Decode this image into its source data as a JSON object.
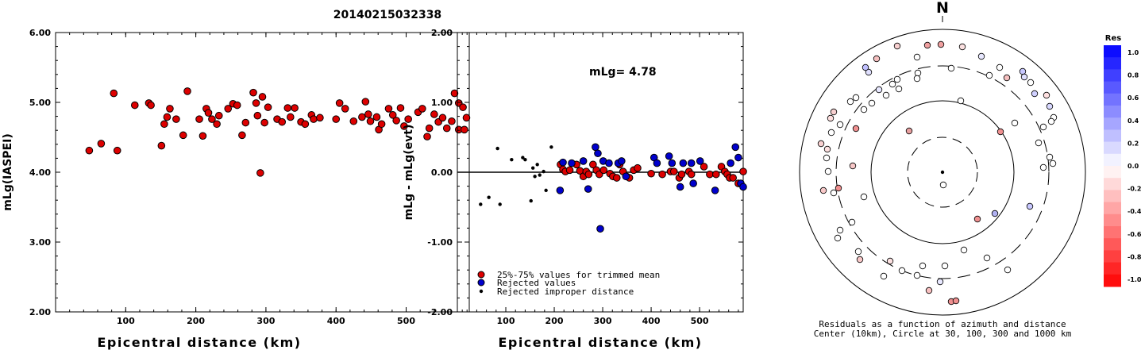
{
  "title": "20140215032338",
  "chart_data": [
    {
      "type": "scatter",
      "xlabel": "Epicentral distance (km)",
      "ylabel": "mLg(IASPEI)",
      "xlim": [
        0,
        590
      ],
      "ylim": [
        2.0,
        6.0
      ],
      "xticks": [
        "100",
        "200",
        "300",
        "400",
        "500"
      ],
      "yticks": [
        "2.00",
        "3.00",
        "4.00",
        "5.00",
        "6.00"
      ],
      "series": [
        {
          "color": "#dd0000",
          "points": [
            [
              48,
              4.31
            ],
            [
              65,
              4.41
            ],
            [
              83,
              5.13
            ],
            [
              88,
              4.31
            ],
            [
              113,
              4.96
            ],
            [
              133,
              4.99
            ],
            [
              136,
              4.96
            ],
            [
              151,
              4.38
            ],
            [
              155,
              4.69
            ],
            [
              159,
              4.79
            ],
            [
              163,
              4.91
            ],
            [
              172,
              4.76
            ],
            [
              182,
              4.53
            ],
            [
              188,
              5.16
            ],
            [
              205,
              4.76
            ],
            [
              210,
              4.52
            ],
            [
              215,
              4.91
            ],
            [
              218,
              4.85
            ],
            [
              223,
              4.76
            ],
            [
              230,
              4.69
            ],
            [
              233,
              4.81
            ],
            [
              246,
              4.91
            ],
            [
              253,
              4.98
            ],
            [
              259,
              4.96
            ],
            [
              266,
              4.53
            ],
            [
              271,
              4.71
            ],
            [
              282,
              5.14
            ],
            [
              286,
              4.99
            ],
            [
              288,
              4.81
            ],
            [
              292,
              3.99
            ],
            [
              295,
              5.08
            ],
            [
              298,
              4.71
            ],
            [
              303,
              4.93
            ],
            [
              316,
              4.76
            ],
            [
              323,
              4.72
            ],
            [
              331,
              4.92
            ],
            [
              335,
              4.79
            ],
            [
              341,
              4.92
            ],
            [
              350,
              4.72
            ],
            [
              356,
              4.69
            ],
            [
              365,
              4.82
            ],
            [
              368,
              4.76
            ],
            [
              377,
              4.78
            ],
            [
              400,
              4.76
            ],
            [
              405,
              4.99
            ],
            [
              413,
              4.91
            ],
            [
              425,
              4.73
            ],
            [
              437,
              4.79
            ],
            [
              442,
              5.01
            ],
            [
              446,
              4.83
            ],
            [
              449,
              4.73
            ],
            [
              458,
              4.79
            ],
            [
              461,
              4.61
            ],
            [
              465,
              4.69
            ],
            [
              475,
              4.91
            ],
            [
              481,
              4.82
            ],
            [
              486,
              4.74
            ],
            [
              492,
              4.92
            ],
            [
              497,
              4.66
            ],
            [
              503,
              4.76
            ],
            [
              517,
              4.86
            ],
            [
              523,
              4.91
            ],
            [
              530,
              4.51
            ],
            [
              533,
              4.63
            ],
            [
              540,
              4.83
            ],
            [
              546,
              4.72
            ],
            [
              552,
              4.78
            ],
            [
              558,
              4.63
            ],
            [
              565,
              4.73
            ],
            [
              569,
              5.13
            ],
            [
              575,
              4.99
            ],
            [
              575,
              4.61
            ],
            [
              581,
              4.93
            ],
            [
              583,
              4.61
            ],
            [
              586,
              4.78
            ]
          ]
        }
      ]
    },
    {
      "type": "scatter",
      "xlabel": "Epicentral distance (km)",
      "ylabel": "mLg - mLg(evt)",
      "xlim": [
        0,
        590
      ],
      "ylim": [
        -2.0,
        2.0
      ],
      "xticks": [
        "100",
        "200",
        "300",
        "400",
        "500"
      ],
      "yticks": [
        "-2.00",
        "-1.00",
        "0.00",
        "1.00",
        "2.00"
      ],
      "annotation": "mLg= 4.78",
      "legend": [
        "25%-75% values for trimmed mean",
        "Rejected values",
        "Rejected improper distance"
      ],
      "legend_position": "bottom",
      "series": [
        {
          "name": "25%-75% values for trimmed mean",
          "color": "#dd0000",
          "points": [
            [
              213,
              0.11
            ],
            [
              218,
              0.04
            ],
            [
              223,
              0.01
            ],
            [
              232,
              0.03
            ],
            [
              246,
              0.11
            ],
            [
              253,
              0.02
            ],
            [
              260,
              -0.06
            ],
            [
              266,
              0.01
            ],
            [
              271,
              -0.03
            ],
            [
              280,
              0.11
            ],
            [
              287,
              0.03
            ],
            [
              293,
              -0.03
            ],
            [
              302,
              0.03
            ],
            [
              315,
              -0.02
            ],
            [
              321,
              -0.06
            ],
            [
              329,
              -0.08
            ],
            [
              335,
              0.11
            ],
            [
              342,
              0.01
            ],
            [
              349,
              -0.06
            ],
            [
              355,
              -0.08
            ],
            [
              364,
              0.03
            ],
            [
              372,
              0.06
            ],
            [
              400,
              -0.02
            ],
            [
              423,
              -0.03
            ],
            [
              440,
              0.01
            ],
            [
              447,
              0.01
            ],
            [
              458,
              -0.08
            ],
            [
              463,
              -0.03
            ],
            [
              478,
              0.01
            ],
            [
              483,
              -0.03
            ],
            [
              509,
              0.08
            ],
            [
              521,
              -0.03
            ],
            [
              534,
              -0.03
            ],
            [
              545,
              0.08
            ],
            [
              552,
              0.01
            ],
            [
              557,
              -0.03
            ],
            [
              562,
              -0.08
            ],
            [
              569,
              -0.08
            ],
            [
              580,
              -0.16
            ],
            [
              590,
              0.01
            ]
          ]
        },
        {
          "name": "Rejected values",
          "color": "#0000cc",
          "points": [
            [
              212,
              -0.26
            ],
            [
              218,
              0.14
            ],
            [
              236,
              0.13
            ],
            [
              260,
              0.16
            ],
            [
              270,
              -0.24
            ],
            [
              285,
              0.36
            ],
            [
              290,
              0.27
            ],
            [
              295,
              -0.81
            ],
            [
              301,
              0.16
            ],
            [
              313,
              0.13
            ],
            [
              332,
              0.13
            ],
            [
              339,
              0.16
            ],
            [
              348,
              -0.06
            ],
            [
              406,
              0.21
            ],
            [
              412,
              0.13
            ],
            [
              437,
              0.23
            ],
            [
              443,
              0.13
            ],
            [
              460,
              -0.21
            ],
            [
              466,
              0.13
            ],
            [
              483,
              0.13
            ],
            [
              487,
              -0.16
            ],
            [
              501,
              0.16
            ],
            [
              532,
              -0.26
            ],
            [
              564,
              0.13
            ],
            [
              574,
              0.36
            ],
            [
              580,
              0.21
            ],
            [
              585,
              -0.16
            ],
            [
              590,
              -0.21
            ]
          ]
        },
        {
          "name": "Rejected improper distance",
          "color": "#000000",
          "points": [
            [
              48,
              -0.46
            ],
            [
              65,
              -0.36
            ],
            [
              83,
              0.34
            ],
            [
              88,
              -0.46
            ],
            [
              112,
              0.18
            ],
            [
              135,
              0.21
            ],
            [
              140,
              0.18
            ],
            [
              152,
              -0.41
            ],
            [
              156,
              0.06
            ],
            [
              160,
              -0.06
            ],
            [
              165,
              0.11
            ],
            [
              170,
              -0.04
            ],
            [
              178,
              0.01
            ],
            [
              183,
              -0.26
            ],
            [
              194,
              0.36
            ]
          ]
        }
      ]
    }
  ],
  "azimuth_plot": {
    "north_label": "N",
    "caption_line1": "Residuals as a function of azimuth and distance",
    "caption_line2": "Center (10km), Circle at 30, 100, 300 and 1000 km"
  },
  "colorbar": {
    "title": "Res",
    "labels": [
      "1.0",
      "0.8",
      "0.6",
      "0.4",
      "0.2",
      "0.0",
      "-0.2",
      "-0.4",
      "-0.6",
      "-0.8",
      "-1.0"
    ]
  }
}
